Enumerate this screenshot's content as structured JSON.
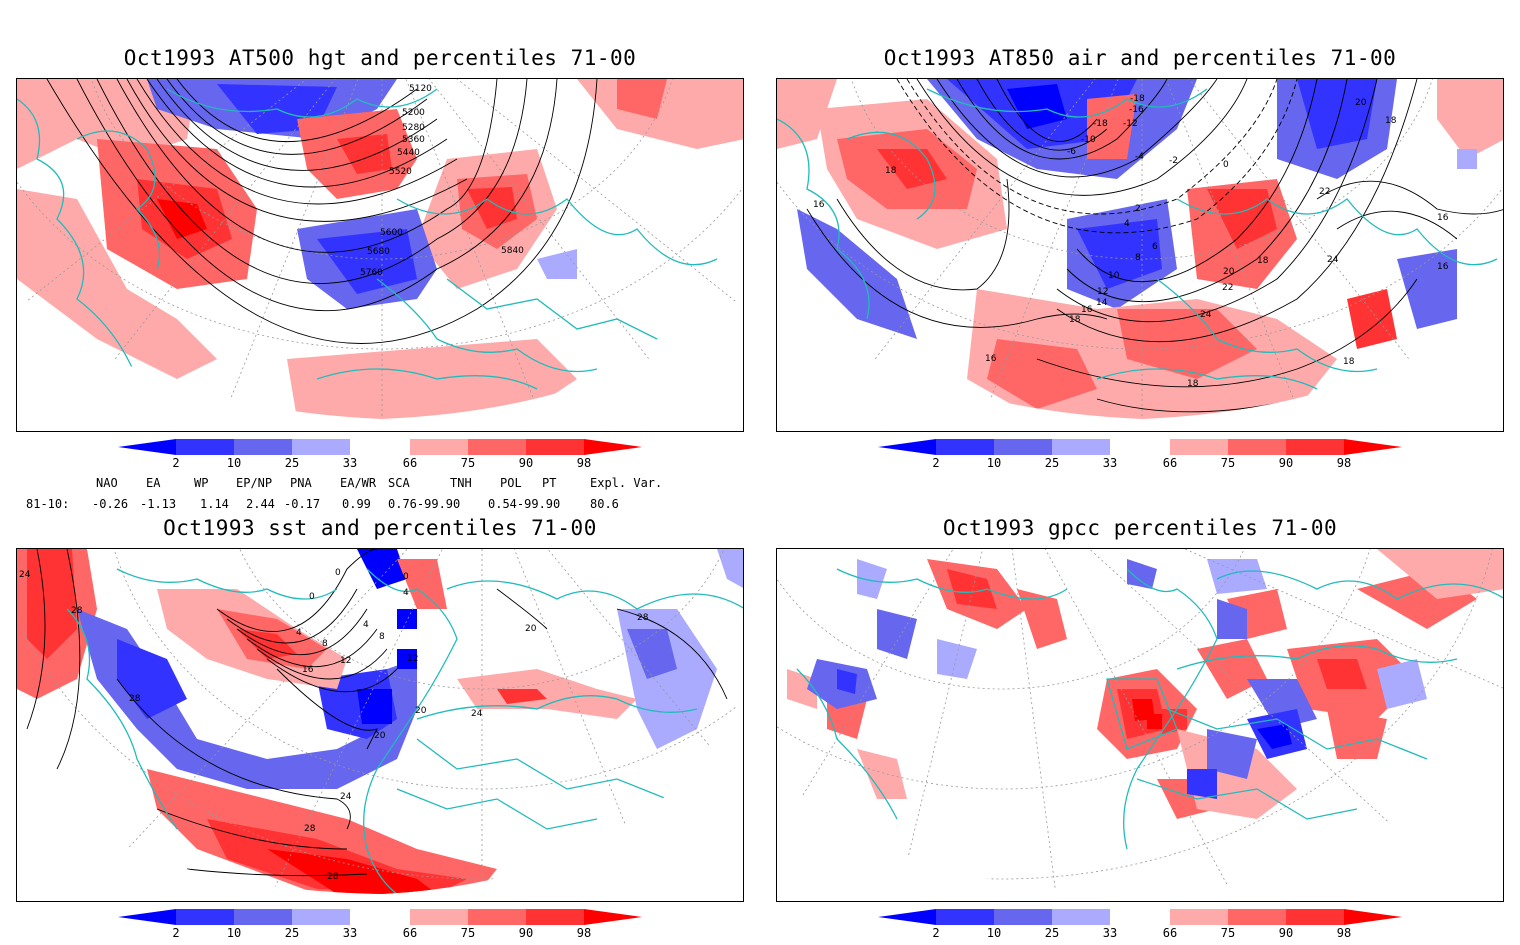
{
  "panels": {
    "hgt": {
      "title": "Oct1993 AT500 hgt and percentiles 71-00",
      "contour_labels": [
        "5120",
        "5200",
        "5280",
        "5360",
        "5440",
        "5520",
        "5600",
        "5680",
        "5760",
        "5840"
      ]
    },
    "air": {
      "title": "Oct1993 AT850 air and percentiles 71-00",
      "contour_labels": [
        "-18",
        "-16",
        "-18",
        "-12",
        "-10",
        "-6",
        "-4",
        "-2",
        "0",
        "2",
        "4",
        "6",
        "8",
        "10",
        "12",
        "14",
        "16",
        "16",
        "18",
        "18",
        "16",
        "18",
        "20",
        "22",
        "24",
        "24",
        "22",
        "20",
        "18",
        "16",
        "16",
        "18",
        "18"
      ]
    },
    "sst": {
      "title": "Oct1993 sst and percentiles 71-00",
      "contour_labels": [
        "24",
        "28",
        "0",
        "0",
        "0",
        "4",
        "4",
        "4",
        "8",
        "8",
        "12",
        "12",
        "16",
        "20",
        "20",
        "24",
        "24",
        "28",
        "28",
        "28",
        "28",
        "20"
      ]
    },
    "gpcc": {
      "title": "Oct1993 gpcc percentiles 71-00",
      "contour_labels": []
    }
  },
  "colorbar": {
    "labels": [
      "2",
      "10",
      "25",
      "33",
      "66",
      "75",
      "90",
      "98"
    ],
    "colors": {
      "below_2": "#0000ff",
      "p2_10": "#3333ff",
      "p10_25": "#6666ee",
      "p25_33": "#aaaaff",
      "p66_75": "#ffaaaa",
      "p75_90": "#ff6666",
      "p90_98": "#ff3333",
      "above_98": "#ff0000"
    }
  },
  "indices": {
    "headers": [
      "NAO",
      "EA",
      "WP",
      "EP/NP",
      "PNA",
      "EA/WR",
      "SCA",
      "TNH",
      "POL",
      "PT",
      "Expl. Var."
    ],
    "row_label": "81-10:",
    "values": [
      "-0.26",
      "-1.13",
      "1.14",
      "2.44",
      "-0.17",
      "0.99",
      "0.76-99.90",
      "0.54-99.90",
      "80.6"
    ]
  },
  "map_colors": {
    "coast": "#22bbbb",
    "grid": "#999999",
    "contour": "#000000"
  }
}
